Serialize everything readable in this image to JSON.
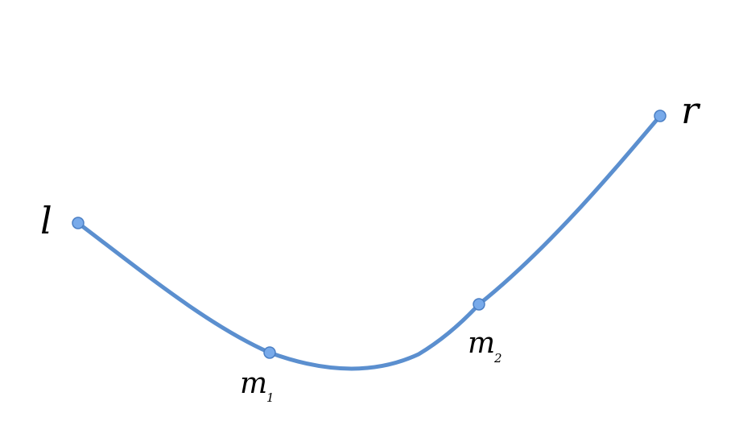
{
  "diagram": {
    "curve_color": "#5b8fcf",
    "point_fill": "#78aaea",
    "point_stroke": "#4b7fc4",
    "points": [
      {
        "id": "l",
        "label": "l",
        "subscript": ""
      },
      {
        "id": "m1",
        "label": "m",
        "subscript": "1"
      },
      {
        "id": "m2",
        "label": "m",
        "subscript": "2"
      },
      {
        "id": "r",
        "label": "r",
        "subscript": ""
      }
    ]
  }
}
